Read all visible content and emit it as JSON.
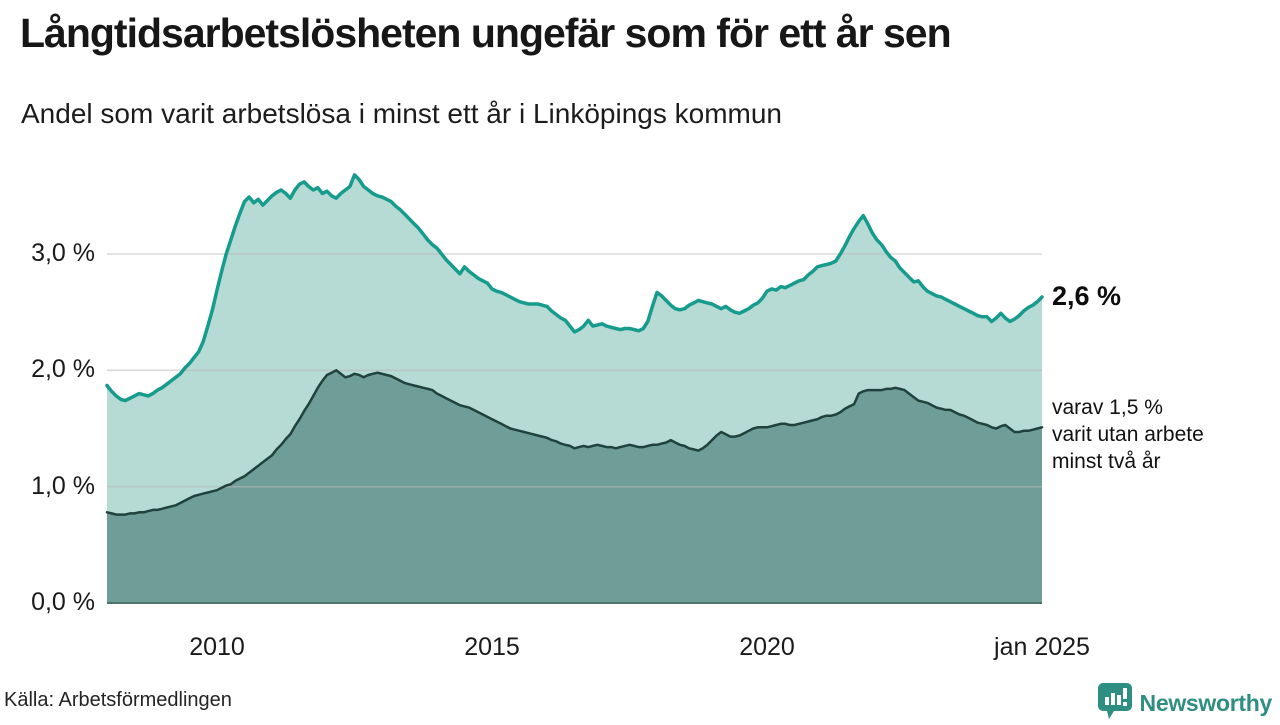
{
  "header": {
    "title": "Långtidsarbetslösheten ungefär som för ett år sen",
    "subtitle": "Andel som varit arbetslösa i minst ett år i Linköpings kommun"
  },
  "chart_data": {
    "type": "area",
    "x_start_year": 2008,
    "x_interval": "monthly",
    "x_end_label": "jan 2025",
    "xlim": [
      2008,
      2025.08
    ],
    "ylim": [
      0,
      3.76
    ],
    "grid": "horizontal",
    "y_ticks": [
      {
        "value": 0,
        "label": "0,0 %"
      },
      {
        "value": 1,
        "label": "1,0 %"
      },
      {
        "value": 2,
        "label": "2,0 %"
      },
      {
        "value": 3,
        "label": "3,0 %"
      }
    ],
    "x_ticks": [
      {
        "year": 2010,
        "label": "2010"
      },
      {
        "year": 2015,
        "label": "2015"
      },
      {
        "year": 2020,
        "label": "2020"
      },
      {
        "year": 2025,
        "label": "jan 2025"
      }
    ],
    "series": [
      {
        "name": "arbetslösa minst ett år",
        "line_color": "#169b8d",
        "fill_color": "#b6dad4",
        "line_width": 3.5,
        "values": [
          1.87,
          1.82,
          1.78,
          1.75,
          1.74,
          1.76,
          1.78,
          1.8,
          1.79,
          1.78,
          1.8,
          1.83,
          1.85,
          1.88,
          1.91,
          1.94,
          1.97,
          2.02,
          2.06,
          2.11,
          2.16,
          2.25,
          2.38,
          2.52,
          2.69,
          2.85,
          3.0,
          3.12,
          3.24,
          3.35,
          3.45,
          3.49,
          3.44,
          3.47,
          3.42,
          3.46,
          3.5,
          3.53,
          3.55,
          3.52,
          3.48,
          3.55,
          3.6,
          3.62,
          3.58,
          3.55,
          3.57,
          3.52,
          3.54,
          3.5,
          3.48,
          3.52,
          3.55,
          3.58,
          3.68,
          3.64,
          3.58,
          3.55,
          3.52,
          3.5,
          3.49,
          3.47,
          3.45,
          3.41,
          3.38,
          3.34,
          3.3,
          3.26,
          3.22,
          3.17,
          3.12,
          3.08,
          3.05,
          3.0,
          2.95,
          2.91,
          2.87,
          2.83,
          2.89,
          2.85,
          2.82,
          2.79,
          2.77,
          2.75,
          2.7,
          2.68,
          2.67,
          2.65,
          2.63,
          2.61,
          2.59,
          2.58,
          2.57,
          2.57,
          2.57,
          2.56,
          2.55,
          2.51,
          2.48,
          2.45,
          2.43,
          2.38,
          2.33,
          2.35,
          2.38,
          2.43,
          2.38,
          2.39,
          2.4,
          2.38,
          2.37,
          2.36,
          2.35,
          2.36,
          2.36,
          2.35,
          2.34,
          2.36,
          2.42,
          2.55,
          2.67,
          2.64,
          2.6,
          2.56,
          2.53,
          2.52,
          2.53,
          2.56,
          2.58,
          2.6,
          2.59,
          2.58,
          2.57,
          2.55,
          2.53,
          2.55,
          2.52,
          2.5,
          2.49,
          2.51,
          2.53,
          2.56,
          2.58,
          2.62,
          2.68,
          2.7,
          2.69,
          2.72,
          2.71,
          2.73,
          2.75,
          2.77,
          2.78,
          2.82,
          2.85,
          2.89,
          2.9,
          2.91,
          2.92,
          2.94,
          3.0,
          3.07,
          3.15,
          3.22,
          3.28,
          3.33,
          3.26,
          3.18,
          3.12,
          3.08,
          3.02,
          2.97,
          2.94,
          2.88,
          2.84,
          2.8,
          2.76,
          2.77,
          2.72,
          2.68,
          2.66,
          2.64,
          2.63,
          2.61,
          2.59,
          2.57,
          2.55,
          2.53,
          2.51,
          2.49,
          2.47,
          2.46,
          2.46,
          2.42,
          2.45,
          2.49,
          2.45,
          2.42,
          2.44,
          2.47,
          2.51,
          2.54,
          2.56,
          2.59,
          2.63
        ]
      },
      {
        "name": "arbetslösa minst två år",
        "line_color": "#20423d",
        "fill_color": "#6f9d98",
        "line_width": 2.5,
        "values": [
          0.78,
          0.77,
          0.76,
          0.76,
          0.76,
          0.77,
          0.77,
          0.78,
          0.78,
          0.79,
          0.8,
          0.8,
          0.81,
          0.82,
          0.83,
          0.84,
          0.86,
          0.88,
          0.9,
          0.92,
          0.93,
          0.94,
          0.95,
          0.96,
          0.97,
          0.99,
          1.01,
          1.02,
          1.05,
          1.07,
          1.09,
          1.12,
          1.15,
          1.18,
          1.21,
          1.24,
          1.27,
          1.32,
          1.36,
          1.41,
          1.45,
          1.52,
          1.58,
          1.65,
          1.71,
          1.78,
          1.85,
          1.91,
          1.96,
          1.98,
          2.0,
          1.97,
          1.94,
          1.95,
          1.97,
          1.96,
          1.94,
          1.96,
          1.97,
          1.98,
          1.97,
          1.96,
          1.95,
          1.93,
          1.91,
          1.89,
          1.88,
          1.87,
          1.86,
          1.85,
          1.84,
          1.83,
          1.8,
          1.78,
          1.76,
          1.74,
          1.72,
          1.7,
          1.69,
          1.68,
          1.66,
          1.64,
          1.62,
          1.6,
          1.58,
          1.56,
          1.54,
          1.52,
          1.5,
          1.49,
          1.48,
          1.47,
          1.46,
          1.45,
          1.44,
          1.43,
          1.42,
          1.4,
          1.39,
          1.37,
          1.36,
          1.35,
          1.33,
          1.34,
          1.35,
          1.34,
          1.35,
          1.36,
          1.35,
          1.34,
          1.34,
          1.33,
          1.34,
          1.35,
          1.36,
          1.35,
          1.34,
          1.34,
          1.35,
          1.36,
          1.36,
          1.37,
          1.38,
          1.4,
          1.38,
          1.36,
          1.35,
          1.33,
          1.32,
          1.31,
          1.33,
          1.36,
          1.4,
          1.44,
          1.47,
          1.45,
          1.43,
          1.43,
          1.44,
          1.46,
          1.48,
          1.5,
          1.51,
          1.51,
          1.51,
          1.52,
          1.53,
          1.54,
          1.54,
          1.53,
          1.53,
          1.54,
          1.55,
          1.56,
          1.57,
          1.58,
          1.6,
          1.61,
          1.61,
          1.62,
          1.64,
          1.67,
          1.69,
          1.71,
          1.8,
          1.82,
          1.83,
          1.83,
          1.83,
          1.83,
          1.84,
          1.84,
          1.85,
          1.84,
          1.83,
          1.8,
          1.77,
          1.74,
          1.73,
          1.72,
          1.7,
          1.68,
          1.67,
          1.66,
          1.66,
          1.64,
          1.62,
          1.61,
          1.59,
          1.57,
          1.55,
          1.54,
          1.53,
          1.51,
          1.5,
          1.52,
          1.53,
          1.5,
          1.47,
          1.47,
          1.48,
          1.48,
          1.49,
          1.5,
          1.51
        ]
      }
    ],
    "annotations": {
      "latest_value": "2,6 %",
      "secondary_note": "varav 1,5 %\nvarit utan arbete\nminst två år"
    },
    "colors": {
      "grid": "rgba(185,185,185,0.55)",
      "baseline": "#4f726d",
      "background": "#ffffff"
    }
  },
  "footer": {
    "source": "Källa: Arbetsförmedlingen",
    "brand": "Newsworthy",
    "brand_color": "#2f8e82"
  }
}
